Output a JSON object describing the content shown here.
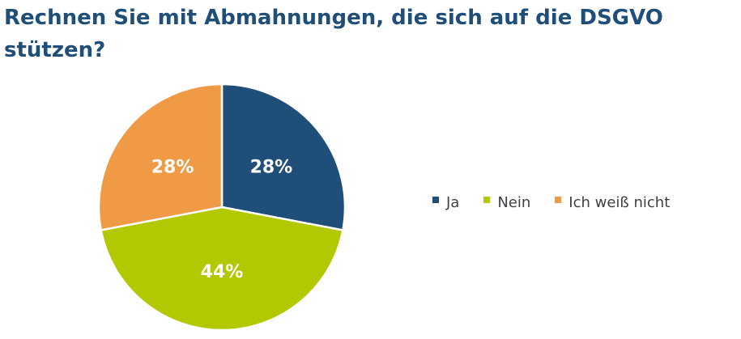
{
  "chart_data": {
    "type": "pie",
    "title": "Rechnen Sie mit Abmahnungen, die sich auf die DSGVO stützen?",
    "categories": [
      "Ja",
      "Nein",
      "Ich weiß nicht"
    ],
    "values": [
      28,
      44,
      28
    ],
    "value_labels": [
      "28%",
      "44%",
      "28%"
    ],
    "colors": [
      "#1f4e79",
      "#b2c800",
      "#f09a45"
    ],
    "legend_position": "right"
  }
}
